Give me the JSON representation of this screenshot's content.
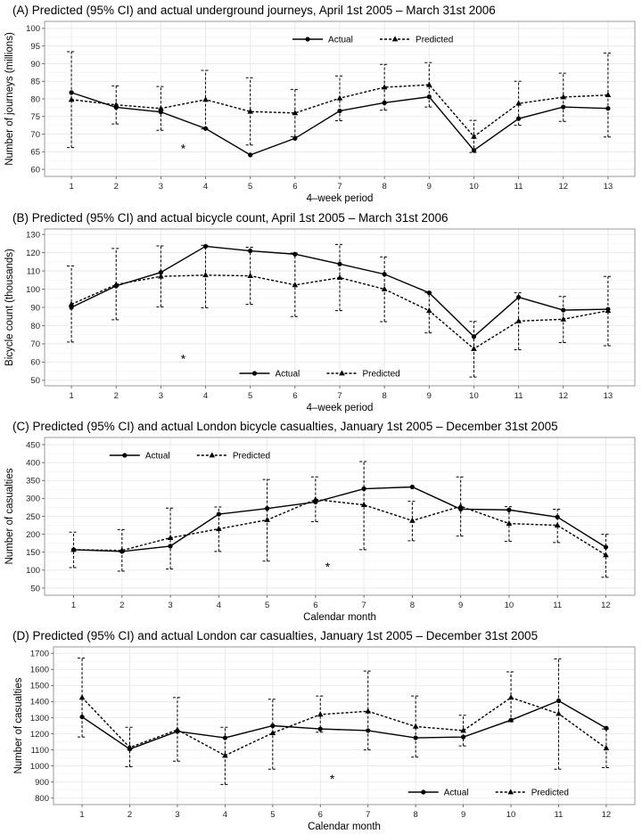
{
  "chart_data": [
    {
      "type": "line",
      "title": "(A) Predicted (95% CI) and actual underground journeys, April 1st 2005 – March 31st 2006",
      "xlabel": "4–week period",
      "ylabel": "Number of journeys (millions)",
      "categories": [
        "1",
        "2",
        "3",
        "4",
        "5",
        "6",
        "7",
        "8",
        "9",
        "10",
        "11",
        "12",
        "13"
      ],
      "ylim": [
        58,
        102
      ],
      "yticks": [
        60,
        65,
        70,
        75,
        80,
        85,
        90,
        95,
        100
      ],
      "grid": true,
      "legend_position": "top-center",
      "annotation": {
        "text": "*",
        "x": 3.5,
        "y": 66
      },
      "series": [
        {
          "name": "Actual",
          "style": "solid",
          "marker": "circle",
          "values": [
            81.8,
            77.6,
            76.3,
            71.6,
            64.1,
            68.8,
            76.6,
            78.9,
            80.6,
            65.4,
            74.4,
            77.7,
            77.3
          ]
        },
        {
          "name": "Predicted",
          "style": "dashed",
          "marker": "triangle",
          "values": [
            79.8,
            78.3,
            77.3,
            79.8,
            76.4,
            76.0,
            80.2,
            83.3,
            84.0,
            69.3,
            78.7,
            80.5,
            81.1
          ],
          "ci_low": [
            66.2,
            72.9,
            71.1,
            71.5,
            66.9,
            69.3,
            73.8,
            76.8,
            77.7,
            64.8,
            72.5,
            73.6,
            69.2
          ],
          "ci_high": [
            93.4,
            83.7,
            83.5,
            88.1,
            86.0,
            82.7,
            86.5,
            89.8,
            90.3,
            73.9,
            85.0,
            87.3,
            93.0
          ]
        }
      ]
    },
    {
      "type": "line",
      "title": "(B) Predicted (95% CI) and actual bicycle count, April 1st 2005 – March 31st 2006",
      "xlabel": "4–week period",
      "ylabel": "Bicycle count (thousands)",
      "categories": [
        "1",
        "2",
        "3",
        "4",
        "5",
        "6",
        "7",
        "8",
        "9",
        "10",
        "11",
        "12",
        "13"
      ],
      "ylim": [
        47,
        133
      ],
      "yticks": [
        50,
        60,
        70,
        80,
        90,
        100,
        110,
        120,
        130
      ],
      "grid": true,
      "legend_position": "bottom-center",
      "annotation": {
        "text": "*",
        "x": 3.5,
        "y": 62
      },
      "series": [
        {
          "name": "Actual",
          "style": "solid",
          "marker": "circle",
          "values": [
            90.0,
            101.8,
            109.2,
            123.5,
            121.0,
            119.2,
            113.8,
            108.2,
            98.0,
            74.0,
            95.6,
            88.5,
            89.0
          ]
        },
        {
          "name": "Predicted",
          "style": "dashed",
          "marker": "triangle",
          "values": [
            91.7,
            102.5,
            107.0,
            107.7,
            107.3,
            102.3,
            106.3,
            100.0,
            88.2,
            67.3,
            82.5,
            83.5,
            88.2
          ],
          "ci_low": [
            71.0,
            83.2,
            90.3,
            89.8,
            91.7,
            85.0,
            88.2,
            82.2,
            76.0,
            51.8,
            66.8,
            70.7,
            69.0
          ],
          "ci_high": [
            112.7,
            122.3,
            123.7,
            124.0,
            123.0,
            119.8,
            124.5,
            117.7,
            98.2,
            82.3,
            98.0,
            96.0,
            107.0
          ]
        }
      ]
    },
    {
      "type": "line",
      "title": "(C) Predicted (95% CI) and actual London bicycle casualties, January 1st 2005 – December 31st 2005",
      "xlabel": "Calendar month",
      "ylabel": "Number of casualties",
      "categories": [
        "1",
        "2",
        "3",
        "4",
        "5",
        "6",
        "7",
        "8",
        "9",
        "10",
        "11",
        "12"
      ],
      "ylim": [
        30,
        470
      ],
      "yticks": [
        50,
        100,
        150,
        200,
        250,
        300,
        350,
        400,
        450
      ],
      "grid": true,
      "legend_position": "top-left",
      "annotation": {
        "text": "*",
        "x": 6.25,
        "y": 110
      },
      "series": [
        {
          "name": "Actual",
          "style": "solid",
          "marker": "circle",
          "values": [
            157,
            152,
            167,
            256,
            272,
            290,
            327,
            332,
            270,
            268,
            248,
            164
          ]
        },
        {
          "name": "Predicted",
          "style": "dashed",
          "marker": "triangle",
          "values": [
            157,
            155,
            190,
            215,
            240,
            297,
            282,
            238,
            278,
            230,
            225,
            142
          ],
          "ci_low": [
            107,
            97,
            103,
            152,
            125,
            235,
            157,
            182,
            195,
            180,
            177,
            80
          ],
          "ci_high": [
            206,
            213,
            273,
            276,
            353,
            360,
            403,
            292,
            360,
            277,
            270,
            200
          ]
        }
      ]
    },
    {
      "type": "line",
      "title": "(D) Predicted (95% CI) and actual London car casualties, January 1st 2005 – December 31st 2005",
      "xlabel": "Calendar month",
      "ylabel": "Number of casualties",
      "categories": [
        "1",
        "2",
        "3",
        "4",
        "5",
        "6",
        "7",
        "8",
        "9",
        "10",
        "11",
        "12"
      ],
      "ylim": [
        760,
        1740
      ],
      "yticks": [
        800,
        900,
        1000,
        1100,
        1200,
        1300,
        1400,
        1500,
        1600,
        1700
      ],
      "grid": true,
      "legend_position": "bottom-right",
      "annotation": {
        "text": "*",
        "x": 6.25,
        "y": 920
      },
      "series": [
        {
          "name": "Actual",
          "style": "solid",
          "marker": "circle",
          "values": [
            1305,
            1105,
            1215,
            1175,
            1250,
            1230,
            1220,
            1175,
            1180,
            1285,
            1405,
            1235
          ]
        },
        {
          "name": "Predicted",
          "style": "dashed",
          "marker": "triangle",
          "values": [
            1425,
            1115,
            1225,
            1065,
            1205,
            1320,
            1340,
            1245,
            1220,
            1425,
            1325,
            1110
          ],
          "ci_low": [
            1180,
            995,
            1030,
            885,
            980,
            1210,
            1100,
            1055,
            1125,
            1275,
            980,
            990
          ],
          "ci_high": [
            1670,
            1240,
            1425,
            1240,
            1415,
            1435,
            1590,
            1435,
            1315,
            1585,
            1665,
            1230
          ]
        }
      ]
    }
  ]
}
